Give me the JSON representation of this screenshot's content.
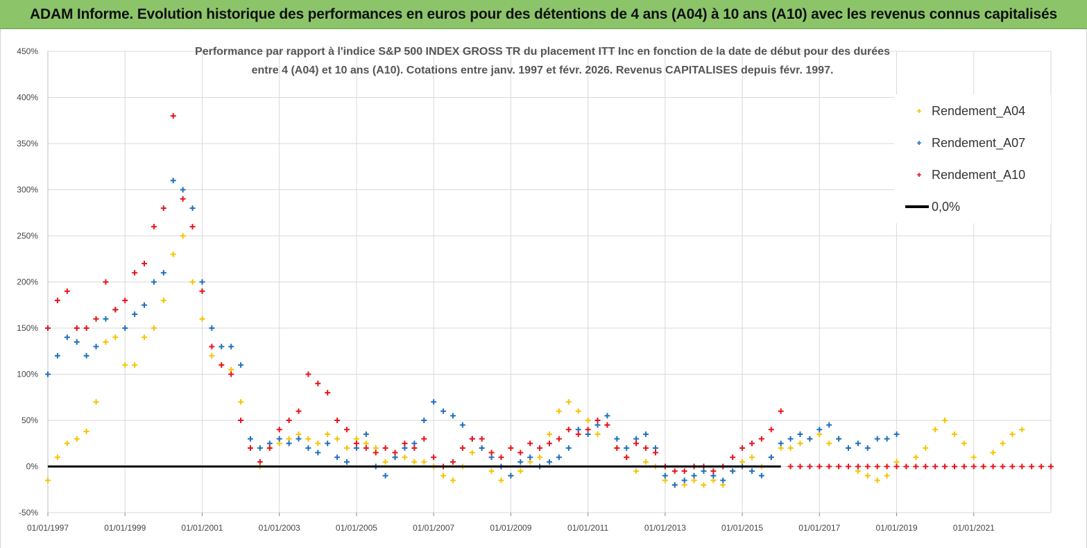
{
  "banner": {
    "title": "ADAM Informe. Evolution historique des performances en euros pour des détentions de 4 ans (A04) à 10 ans (A10) avec les revenus connus capitalisés"
  },
  "colors": {
    "banner_bg": "#8cc46a",
    "a04": "#f5c400",
    "a07": "#1f6fc0",
    "a10": "#e8121a",
    "zero": "#000000",
    "grid": "#d9d9d9"
  },
  "chart_data": {
    "type": "scatter",
    "title_line1": "Performance par rapport à l'indice S&P 500 INDEX GROSS TR  du placement ITT Inc en fonction de la date de début pour des durées",
    "title_line2": "entre 4 (A04) et 10 ans (A10). Cotations entre janv. 1997 et févr. 2026. Revenus CAPITALISES depuis févr. 1997.",
    "xlabel": "",
    "ylabel": "",
    "xlim": [
      1997.0,
      2023.0
    ],
    "ylim": [
      -50,
      450
    ],
    "y_ticks": [
      -50,
      0,
      50,
      100,
      150,
      200,
      250,
      300,
      350,
      400,
      450
    ],
    "y_tick_labels": [
      "-50%",
      "0%",
      "50%",
      "100%",
      "150%",
      "200%",
      "250%",
      "300%",
      "350%",
      "400%",
      "450%"
    ],
    "x_ticks": [
      1997,
      1999,
      2001,
      2003,
      2005,
      2007,
      2009,
      2011,
      2013,
      2015,
      2017,
      2019,
      2021
    ],
    "x_tick_labels": [
      "01/01/1997",
      "01/01/1999",
      "01/01/2001",
      "01/01/2003",
      "01/01/2005",
      "01/01/2007",
      "01/01/2009",
      "01/01/2011",
      "01/01/2013",
      "01/01/2015",
      "01/01/2017",
      "01/01/2019",
      "01/01/2021"
    ],
    "grid": true,
    "legend_position": "top-right",
    "legend": [
      {
        "key": "a04",
        "label": "Rendement_A04",
        "marker": "+"
      },
      {
        "key": "a07",
        "label": "Rendement_A07",
        "marker": "+"
      },
      {
        "key": "a10",
        "label": "Rendement_A10",
        "marker": "+"
      },
      {
        "key": "zero",
        "label": "0,0%",
        "marker": "line"
      }
    ],
    "series": [
      {
        "name": "Rendement_A04",
        "key": "a04",
        "x": [
          1997.0,
          1997.25,
          1997.5,
          1997.75,
          1998.0,
          1998.25,
          1998.5,
          1998.75,
          1999.0,
          1999.25,
          1999.5,
          1999.75,
          2000.0,
          2000.25,
          2000.5,
          2000.75,
          2001.0,
          2001.25,
          2001.5,
          2001.75,
          2002.0,
          2002.25,
          2002.5,
          2002.75,
          2003.0,
          2003.25,
          2003.5,
          2003.75,
          2004.0,
          2004.25,
          2004.5,
          2004.75,
          2005.0,
          2005.25,
          2005.5,
          2005.75,
          2006.0,
          2006.25,
          2006.5,
          2006.75,
          2007.0,
          2007.25,
          2007.5,
          2007.75,
          2008.0,
          2008.25,
          2008.5,
          2008.75,
          2009.0,
          2009.25,
          2009.5,
          2009.75,
          2010.0,
          2010.25,
          2010.5,
          2010.75,
          2011.0,
          2011.25,
          2011.5,
          2011.75,
          2012.0,
          2012.25,
          2012.5,
          2012.75,
          2013.0,
          2013.25,
          2013.5,
          2013.75,
          2014.0,
          2014.25,
          2014.5,
          2014.75,
          2015.0,
          2015.25,
          2015.5,
          2015.75,
          2016.0,
          2016.25,
          2016.5,
          2016.75,
          2017.0,
          2017.25,
          2017.5,
          2017.75,
          2018.0,
          2018.25,
          2018.5,
          2018.75,
          2019.0,
          2019.25,
          2019.5,
          2019.75,
          2020.0,
          2020.25,
          2020.5,
          2020.75,
          2021.0,
          2021.25,
          2021.5,
          2021.75,
          2022.0,
          2022.25
        ],
        "y": [
          -15,
          10,
          25,
          30,
          38,
          70,
          135,
          140,
          110,
          110,
          140,
          150,
          180,
          230,
          250,
          200,
          160,
          120,
          110,
          105,
          70,
          20,
          0,
          20,
          25,
          30,
          35,
          30,
          25,
          35,
          30,
          20,
          30,
          25,
          20,
          5,
          10,
          10,
          5,
          5,
          0,
          -10,
          -15,
          0,
          15,
          20,
          -5,
          -15,
          -10,
          -5,
          5,
          10,
          35,
          60,
          70,
          60,
          50,
          35,
          45,
          20,
          10,
          -5,
          5,
          0,
          -15,
          -20,
          -20,
          -15,
          -20,
          -15,
          -20,
          -5,
          5,
          10,
          0,
          10,
          20,
          20,
          25,
          30,
          35,
          25,
          30,
          20,
          -5,
          -10,
          -15,
          -10,
          5,
          0,
          10,
          20,
          40,
          50,
          35,
          25,
          10,
          0,
          15,
          25,
          35,
          40
        ]
      },
      {
        "name": "Rendement_A07",
        "key": "a07",
        "x": [
          1997.0,
          1997.25,
          1997.5,
          1997.75,
          1998.0,
          1998.25,
          1998.5,
          1998.75,
          1999.0,
          1999.25,
          1999.5,
          1999.75,
          2000.0,
          2000.25,
          2000.5,
          2000.75,
          2001.0,
          2001.25,
          2001.5,
          2001.75,
          2002.0,
          2002.25,
          2002.5,
          2002.75,
          2003.0,
          2003.25,
          2003.5,
          2003.75,
          2004.0,
          2004.25,
          2004.5,
          2004.75,
          2005.0,
          2005.25,
          2005.5,
          2005.75,
          2006.0,
          2006.25,
          2006.5,
          2006.75,
          2007.0,
          2007.25,
          2007.5,
          2007.75,
          2008.0,
          2008.25,
          2008.5,
          2008.75,
          2009.0,
          2009.25,
          2009.5,
          2009.75,
          2010.0,
          2010.25,
          2010.5,
          2010.75,
          2011.0,
          2011.25,
          2011.5,
          2011.75,
          2012.0,
          2012.25,
          2012.5,
          2012.75,
          2013.0,
          2013.25,
          2013.5,
          2013.75,
          2014.0,
          2014.25,
          2014.5,
          2014.75,
          2015.0,
          2015.25,
          2015.5,
          2015.75,
          2016.0,
          2016.25,
          2016.5,
          2016.75,
          2017.0,
          2017.25,
          2017.5,
          2017.75,
          2018.0,
          2018.25,
          2018.5,
          2018.75,
          2019.0
        ],
        "y": [
          100,
          120,
          140,
          135,
          120,
          130,
          160,
          170,
          150,
          165,
          175,
          200,
          210,
          310,
          300,
          280,
          200,
          150,
          130,
          130,
          110,
          30,
          20,
          25,
          30,
          25,
          30,
          20,
          15,
          25,
          10,
          5,
          20,
          35,
          0,
          -10,
          10,
          20,
          25,
          50,
          70,
          60,
          55,
          45,
          30,
          20,
          10,
          0,
          -10,
          5,
          10,
          0,
          5,
          10,
          20,
          40,
          35,
          45,
          55,
          30,
          20,
          30,
          35,
          20,
          -10,
          -20,
          -15,
          -10,
          -5,
          -10,
          -15,
          -5,
          0,
          -5,
          -10,
          10,
          25,
          30,
          35,
          30,
          40,
          45,
          30,
          20,
          25,
          20,
          30,
          30,
          35
        ]
      },
      {
        "name": "Rendement_A10",
        "key": "a10",
        "x": [
          1997.0,
          1997.25,
          1997.5,
          1997.75,
          1998.0,
          1998.25,
          1998.5,
          1998.75,
          1999.0,
          1999.25,
          1999.5,
          1999.75,
          2000.0,
          2000.25,
          2000.5,
          2000.75,
          2001.0,
          2001.25,
          2001.5,
          2001.75,
          2002.0,
          2002.25,
          2002.5,
          2002.75,
          2003.0,
          2003.25,
          2003.5,
          2003.75,
          2004.0,
          2004.25,
          2004.5,
          2004.75,
          2005.0,
          2005.25,
          2005.5,
          2005.75,
          2006.0,
          2006.25,
          2006.5,
          2006.75,
          2007.0,
          2007.25,
          2007.5,
          2007.75,
          2008.0,
          2008.25,
          2008.5,
          2008.75,
          2009.0,
          2009.25,
          2009.5,
          2009.75,
          2010.0,
          2010.25,
          2010.5,
          2010.75,
          2011.0,
          2011.25,
          2011.5,
          2011.75,
          2012.0,
          2012.25,
          2012.5,
          2012.75,
          2013.0,
          2013.25,
          2013.5,
          2013.75,
          2014.0,
          2014.25,
          2014.5,
          2014.75,
          2015.0,
          2015.25,
          2015.5,
          2015.75,
          2016.0,
          2016.25,
          2016.5,
          2016.75,
          2017.0,
          2017.25,
          2017.5,
          2017.75,
          2018.0,
          2018.25,
          2018.5,
          2018.75,
          2019.0,
          2019.25,
          2019.5,
          2019.75,
          2020.0,
          2020.25,
          2020.5,
          2020.75,
          2021.0,
          2021.25,
          2021.5,
          2021.75,
          2022.0,
          2022.25,
          2022.5,
          2022.75,
          2023.0
        ],
        "y": [
          150,
          180,
          190,
          150,
          150,
          160,
          200,
          170,
          180,
          210,
          220,
          260,
          280,
          380,
          290,
          260,
          190,
          130,
          110,
          100,
          50,
          20,
          5,
          20,
          40,
          50,
          60,
          100,
          90,
          80,
          50,
          40,
          25,
          20,
          15,
          20,
          15,
          25,
          20,
          30,
          10,
          0,
          5,
          20,
          30,
          30,
          15,
          10,
          20,
          15,
          25,
          20,
          25,
          30,
          40,
          35,
          40,
          50,
          45,
          20,
          10,
          25,
          20,
          15,
          0,
          -5,
          -5,
          0,
          0,
          -5,
          0,
          10,
          20,
          25,
          30,
          40,
          60,
          0,
          0,
          0,
          0,
          0,
          0,
          0,
          0,
          0,
          0,
          0,
          0,
          0,
          0,
          0,
          0,
          0,
          0,
          0,
          0,
          0,
          0,
          0,
          0,
          0,
          0,
          0,
          0
        ]
      }
    ],
    "reference_line": {
      "name": "0,0%",
      "y": 0
    }
  }
}
